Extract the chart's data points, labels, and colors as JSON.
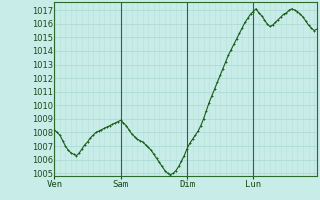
{
  "bg_color": "#c8ece8",
  "grid_color_major": "#a8d8d0",
  "grid_color_minor": "#b8e0d8",
  "line_color": "#1a5c1a",
  "marker_color": "#1a5c1a",
  "day_line_color": "#2a6a2a",
  "ylim": [
    1004.8,
    1017.6
  ],
  "yticks": [
    1005,
    1006,
    1007,
    1008,
    1009,
    1010,
    1011,
    1012,
    1013,
    1014,
    1015,
    1016,
    1017
  ],
  "xtick_labels": [
    "Ven",
    "Sam",
    "Dim",
    "Lun"
  ],
  "xtick_positions": [
    0,
    24,
    48,
    72
  ],
  "n_points": 96,
  "pressure": [
    1008.2,
    1008.0,
    1007.8,
    1007.4,
    1007.0,
    1006.7,
    1006.5,
    1006.4,
    1006.3,
    1006.5,
    1006.8,
    1007.1,
    1007.3,
    1007.6,
    1007.8,
    1008.0,
    1008.1,
    1008.2,
    1008.3,
    1008.4,
    1008.5,
    1008.6,
    1008.7,
    1008.8,
    1008.9,
    1008.7,
    1008.5,
    1008.2,
    1007.9,
    1007.7,
    1007.5,
    1007.4,
    1007.3,
    1007.1,
    1006.9,
    1006.7,
    1006.4,
    1006.1,
    1005.8,
    1005.5,
    1005.2,
    1005.0,
    1004.9,
    1005.0,
    1005.2,
    1005.5,
    1005.9,
    1006.3,
    1006.8,
    1007.2,
    1007.5,
    1007.8,
    1008.1,
    1008.5,
    1009.0,
    1009.6,
    1010.2,
    1010.7,
    1011.2,
    1011.7,
    1012.2,
    1012.7,
    1013.2,
    1013.7,
    1014.1,
    1014.5,
    1014.9,
    1015.3,
    1015.7,
    1016.1,
    1016.4,
    1016.7,
    1016.9,
    1017.1,
    1016.8,
    1016.6,
    1016.3,
    1016.0,
    1015.8,
    1015.9,
    1016.1,
    1016.3,
    1016.5,
    1016.7,
    1016.8,
    1017.0,
    1017.1,
    1017.0,
    1016.9,
    1016.7,
    1016.5,
    1016.2,
    1015.9,
    1015.7,
    1015.5,
    1015.6
  ]
}
